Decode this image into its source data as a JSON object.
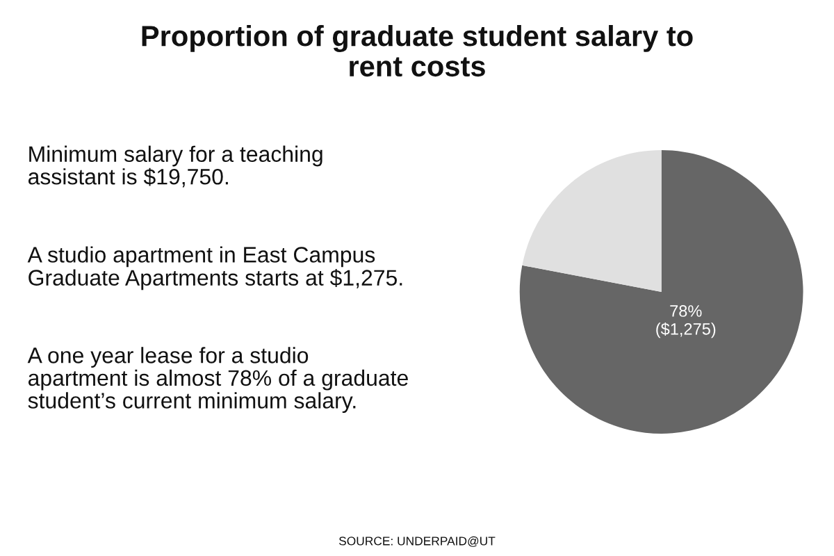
{
  "chart_data": {
    "type": "pie",
    "title": "Proportion of graduate student salary to\nrent costs",
    "categories": [
      null,
      null
    ],
    "values": [
      78,
      22
    ],
    "colors": [
      "#666666",
      "#e0e0e0"
    ],
    "value_labels": [
      "78%\n($1,275)",
      null
    ],
    "annotations": [
      "Minimum salary for a teaching\nassistant is $19,750.",
      "A studio apartment in East Campus\nGraduate Apartments starts at $1,275.",
      "A one year lease for a studio\napartment is almost 78% of a graduate\nstudent’s current minimum salary.",
      "SOURCE: UNDERPAID@UT"
    ],
    "legend": false
  }
}
